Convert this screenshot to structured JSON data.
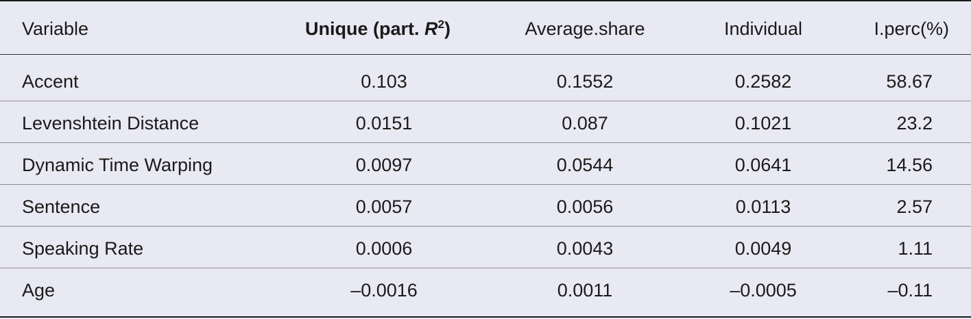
{
  "table": {
    "headers": {
      "variable": "Variable",
      "unique_prefix": "Unique (part. ",
      "unique_r": "R",
      "unique_sup": "2",
      "unique_suffix": ")",
      "average_share": "Average.share",
      "individual": "Individual",
      "iperc": "I.perc(%)"
    },
    "rows": [
      {
        "variable": "Accent",
        "unique": "0.103",
        "average_share": "0.1552",
        "individual": "0.2582",
        "iperc": "58.67"
      },
      {
        "variable": "Levenshtein Distance",
        "unique": "0.0151",
        "average_share": "0.087",
        "individual": "0.1021",
        "iperc": "23.2"
      },
      {
        "variable": "Dynamic Time Warping",
        "unique": "0.0097",
        "average_share": "0.0544",
        "individual": "0.0641",
        "iperc": "14.56"
      },
      {
        "variable": "Sentence",
        "unique": "0.0057",
        "average_share": "0.0056",
        "individual": "0.0113",
        "iperc": "2.57"
      },
      {
        "variable": "Speaking Rate",
        "unique": "0.0006",
        "average_share": "0.0043",
        "individual": "0.0049",
        "iperc": "1.11"
      },
      {
        "variable": "Age",
        "unique": "–0.0016",
        "average_share": "0.0011",
        "individual": "–0.0005",
        "iperc": "–0.11"
      }
    ]
  }
}
